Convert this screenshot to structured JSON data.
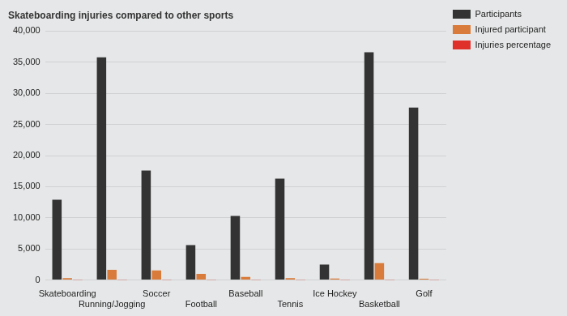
{
  "chart_data": {
    "type": "bar",
    "title": "Skateboarding injuries compared to other sports",
    "categories": [
      "Skateboarding",
      "Running/Jogging",
      "Soccer",
      "Football",
      "Baseball",
      "Tennis",
      "Ice Hockey",
      "Basketball",
      "Golf"
    ],
    "series": [
      {
        "name": "Participants",
        "color": "#333333",
        "values": [
          12900,
          35800,
          17600,
          5600,
          10300,
          16300,
          2500,
          36600,
          27700
        ]
      },
      {
        "name": "Injured participant",
        "color": "#d97b3a",
        "values": [
          300,
          1650,
          1550,
          1000,
          500,
          300,
          250,
          2700,
          200
        ]
      },
      {
        "name": "Injuries percentage",
        "color": "#e0302a",
        "values": [
          2.3,
          4.6,
          8.8,
          17.9,
          4.9,
          1.8,
          10,
          7.4,
          0.7
        ]
      }
    ],
    "ylim": [
      0,
      40000
    ],
    "yticks": [
      0,
      {
        "value": 5000,
        "label": "5,000"
      },
      {
        "value": 10000,
        "label": "10,000"
      },
      {
        "value": 15000,
        "label": "15,000"
      },
      {
        "value": 20000,
        "label": "20,000"
      },
      {
        "value": 25000,
        "label": "25,000"
      },
      {
        "value": 30000,
        "label": "30,000"
      },
      {
        "value": 35000,
        "label": "35,000"
      },
      {
        "value": 40000,
        "label": "40,000"
      }
    ],
    "grid": true,
    "legend": "right"
  }
}
